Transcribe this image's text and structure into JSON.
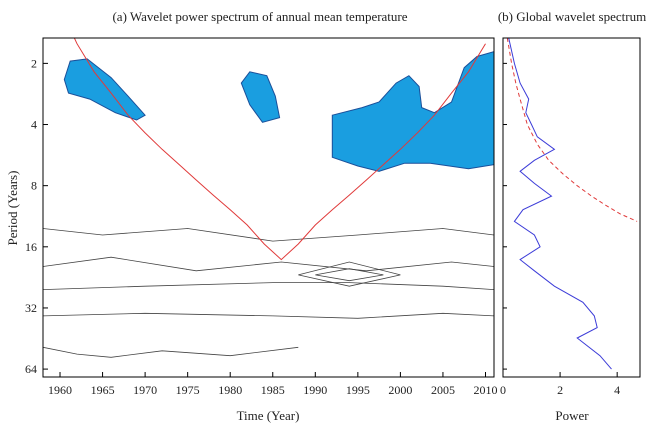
{
  "chart_data": [
    {
      "type": "heatmap",
      "title": "(a) Wavelet power spectrum of annual mean temperature",
      "xlabel": "Time (Year)",
      "ylabel": "Period (Years)",
      "xlim": [
        1958,
        2011
      ],
      "ylim": [
        1.5,
        70
      ],
      "y_scale": "log2",
      "y_reversed": true,
      "x_ticks": [
        "1960",
        "1965",
        "1970",
        "1975",
        "1980",
        "1985",
        "1990",
        "1995",
        "2000",
        "2005",
        "2010"
      ],
      "y_ticks": [
        "2",
        "4",
        "8",
        "16",
        "32",
        "64"
      ],
      "significant_regions": [
        {
          "name": "sig-1960s",
          "points": [
            [
              1960.5,
              2.4
            ],
            [
              1961.2,
              1.95
            ],
            [
              1963.2,
              1.9
            ],
            [
              1966,
              2.35
            ],
            [
              1968,
              2.9
            ],
            [
              1970,
              3.6
            ],
            [
              1969,
              3.8
            ],
            [
              1966.5,
              3.5
            ],
            [
              1963.5,
              3.0
            ],
            [
              1961,
              2.8
            ]
          ]
        },
        {
          "name": "sig-1980s",
          "points": [
            [
              1981.3,
              2.5
            ],
            [
              1982.3,
              2.2
            ],
            [
              1984.3,
              2.3
            ],
            [
              1985.3,
              2.9
            ],
            [
              1985.8,
              3.7
            ],
            [
              1983.8,
              3.9
            ],
            [
              1982.3,
              3.2
            ]
          ]
        },
        {
          "name": "sig-1990s-2010",
          "points": [
            [
              1992,
              3.6
            ],
            [
              1995.5,
              3.3
            ],
            [
              1997.5,
              3.1
            ],
            [
              1999.5,
              2.5
            ],
            [
              2001,
              2.3
            ],
            [
              2002.2,
              2.6
            ],
            [
              2002.5,
              3.3
            ],
            [
              2004,
              3.5
            ],
            [
              2006,
              3.1
            ],
            [
              2007.5,
              2.1
            ],
            [
              2009,
              1.85
            ],
            [
              2011,
              1.75
            ],
            [
              2011,
              6.3
            ],
            [
              2008,
              6.6
            ],
            [
              2003.5,
              6.2
            ],
            [
              2000.5,
              6.2
            ],
            [
              1997.5,
              6.8
            ],
            [
              1995,
              6.4
            ],
            [
              1992,
              5.8
            ]
          ]
        }
      ],
      "cone_of_influence": {
        "x": [
          1961,
          1962,
          1964,
          1966,
          1968,
          1970,
          1972,
          1974,
          1976,
          1978,
          1980,
          1982,
          1984,
          1986,
          1988,
          1990,
          1992,
          1994,
          1996,
          1998,
          2000,
          2002,
          2004,
          2006,
          2008,
          2010
        ],
        "period": [
          1.3,
          1.6,
          2.2,
          2.8,
          3.6,
          4.4,
          5.3,
          6.3,
          7.5,
          8.9,
          10.5,
          12.5,
          15.5,
          18.5,
          15.5,
          12.5,
          10.5,
          8.9,
          7.5,
          6.3,
          5.3,
          4.4,
          3.6,
          2.8,
          2.2,
          1.6
        ]
      },
      "contours": [
        {
          "name": "contour-lowfreq-1",
          "x": [
            1958,
            1965,
            1975,
            1985,
            1995,
            2005,
            2011
          ],
          "period": [
            13,
            14,
            13,
            15,
            14,
            13,
            14
          ]
        },
        {
          "name": "contour-lowfreq-2",
          "x": [
            1958,
            1966,
            1976,
            1986,
            1996,
            2006,
            2011
          ],
          "period": [
            20,
            18,
            21,
            19,
            21,
            19,
            20
          ]
        },
        {
          "name": "contour-lowfreq-3",
          "x": [
            1958,
            1970,
            1985,
            1994,
            2005,
            2011
          ],
          "period": [
            26,
            25,
            24,
            24,
            25,
            26
          ]
        },
        {
          "name": "contour-lowfreq-4",
          "x": [
            1958,
            1970,
            1985,
            1995,
            2005,
            2011
          ],
          "period": [
            35,
            34,
            35,
            36,
            34,
            35
          ]
        },
        {
          "name": "contour-lowfreq-5",
          "x": [
            1958,
            1962,
            1966,
            1972,
            1980,
            1988
          ],
          "period": [
            50,
            54,
            56,
            52,
            55,
            50
          ]
        },
        {
          "name": "contour-diamond-a",
          "x": [
            1988,
            1994,
            2000,
            1994,
            1988
          ],
          "period": [
            22,
            19,
            22,
            25,
            22
          ]
        },
        {
          "name": "contour-diamond-b",
          "x": [
            1990,
            1994,
            1998,
            1994,
            1990
          ],
          "period": [
            22,
            20.5,
            22,
            23.5,
            22
          ]
        }
      ]
    },
    {
      "type": "line",
      "title": "(b) Global wavelet spectrum",
      "xlabel": "Power",
      "ylabel": "",
      "xlim": [
        0,
        4.8
      ],
      "ylim": [
        1.5,
        70
      ],
      "y_scale": "log2",
      "y_reversed": true,
      "x_ticks": [
        "0",
        "2",
        "4"
      ],
      "y_ticks": [
        "2",
        "4",
        "8",
        "16",
        "32",
        "64"
      ],
      "series": [
        {
          "style": "solid",
          "color": "#3c3cd8",
          "period": [
            1.5,
            2.0,
            2.5,
            3.0,
            3.5,
            4.0,
            4.6,
            5.3,
            6.0,
            6.8,
            7.8,
            9.0,
            10.5,
            12.0,
            14.0,
            16.0,
            18.5,
            21.0,
            25.0,
            30.0,
            35.0,
            40.0,
            45.0,
            55.0,
            64.0
          ],
          "power": [
            0.2,
            0.4,
            0.6,
            0.9,
            0.8,
            1.0,
            1.2,
            1.8,
            1.1,
            0.6,
            1.1,
            1.7,
            0.7,
            0.4,
            1.1,
            1.3,
            0.6,
            1.1,
            1.8,
            2.8,
            3.2,
            3.3,
            2.6,
            3.4,
            3.8
          ]
        },
        {
          "style": "dashed",
          "color": "#e03a3a",
          "period": [
            1.5,
            2.0,
            2.5,
            3.0,
            4.0,
            5.0,
            6.0,
            7.0,
            8.0,
            9.0,
            10.0,
            11.0,
            12.0
          ],
          "power": [
            0.15,
            0.3,
            0.45,
            0.6,
            0.85,
            1.2,
            1.6,
            2.1,
            2.6,
            3.1,
            3.6,
            4.1,
            4.7
          ]
        }
      ]
    }
  ]
}
